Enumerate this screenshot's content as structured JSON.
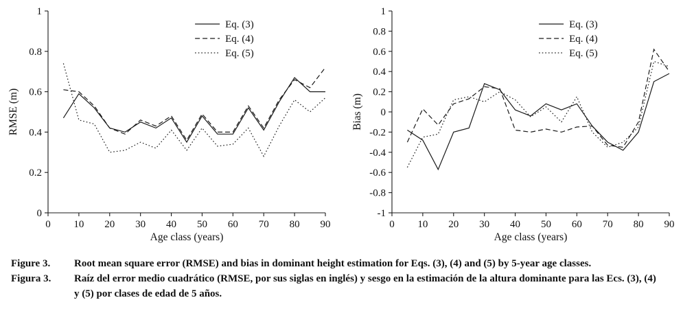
{
  "colors": {
    "line": "#1a1a1a",
    "axis": "#000000",
    "text": "#111111"
  },
  "figure": {
    "caption_en_label": "Figure 3.",
    "caption_en": "Root mean square error (RMSE) and bias in dominant height estimation for Eqs. (3), (4) and (5) by 5-year age classes.",
    "caption_es_label": "Figura 3.",
    "caption_es": "Raíz del error medio cuadrático (RMSE, por sus siglas en inglés) y sesgo en la estimación de la altura dominante para las Ecs. (3), (4) y (5) por clases de edad de 5 años."
  },
  "chart_data": [
    {
      "type": "line",
      "title": "",
      "xlabel": "Age class (years)",
      "ylabel": "RMSE (m)",
      "xlim": [
        0,
        90
      ],
      "ylim": [
        0,
        1
      ],
      "grid": false,
      "legend_position": "top-right-inside",
      "xticks": [
        0,
        10,
        20,
        30,
        40,
        50,
        60,
        70,
        80,
        90
      ],
      "yticks": [
        0,
        0.2,
        0.4,
        0.6,
        0.8,
        1
      ],
      "ytick_labels": [
        "0",
        "0.2",
        "0.4",
        "0.6",
        "0.8",
        "1"
      ],
      "x": [
        5,
        10,
        15,
        20,
        25,
        30,
        35,
        40,
        45,
        50,
        55,
        60,
        65,
        70,
        75,
        80,
        85,
        90
      ],
      "series": [
        {
          "name": "Eq. (3)",
          "style": "solid",
          "values": [
            0.47,
            0.59,
            0.52,
            0.42,
            0.4,
            0.45,
            0.42,
            0.47,
            0.35,
            0.48,
            0.39,
            0.39,
            0.52,
            0.41,
            0.55,
            0.67,
            0.6,
            0.6
          ]
        },
        {
          "name": "Eq. (4)",
          "style": "dashed",
          "values": [
            0.61,
            0.6,
            0.53,
            0.42,
            0.39,
            0.46,
            0.43,
            0.48,
            0.36,
            0.49,
            0.4,
            0.4,
            0.53,
            0.42,
            0.56,
            0.66,
            0.62,
            0.72
          ]
        },
        {
          "name": "Eq. (5)",
          "style": "dotted",
          "values": [
            0.74,
            0.46,
            0.44,
            0.3,
            0.31,
            0.35,
            0.32,
            0.41,
            0.31,
            0.42,
            0.33,
            0.34,
            0.42,
            0.28,
            0.43,
            0.56,
            0.5,
            0.57
          ]
        }
      ]
    },
    {
      "type": "line",
      "title": "",
      "xlabel": "Age class (years)",
      "ylabel": "Bias (m)",
      "xlim": [
        0,
        90
      ],
      "ylim": [
        -1,
        1
      ],
      "grid": false,
      "legend_position": "top-right-inside",
      "xticks": [
        0,
        10,
        20,
        30,
        40,
        50,
        60,
        70,
        80,
        90
      ],
      "yticks": [
        -1,
        -0.8,
        -0.6,
        -0.4,
        -0.2,
        0,
        0.2,
        0.4,
        0.6,
        0.8,
        1
      ],
      "ytick_labels": [
        "-1",
        "-0.8",
        "-0.6",
        "-0.4",
        "-0.2",
        "0",
        "0.2",
        "0.4",
        "0.6",
        "0.8",
        "1"
      ],
      "x": [
        5,
        10,
        15,
        20,
        25,
        30,
        35,
        40,
        45,
        50,
        55,
        60,
        65,
        70,
        75,
        80,
        85,
        90
      ],
      "series": [
        {
          "name": "Eq. (3)",
          "style": "solid",
          "values": [
            -0.18,
            -0.28,
            -0.57,
            -0.2,
            -0.16,
            0.28,
            0.22,
            0.02,
            -0.04,
            0.08,
            0.02,
            0.08,
            -0.14,
            -0.3,
            -0.38,
            -0.2,
            0.3,
            0.38
          ]
        },
        {
          "name": "Eq. (4)",
          "style": "dashed",
          "values": [
            -0.3,
            0.03,
            -0.13,
            0.08,
            0.13,
            0.25,
            0.23,
            -0.18,
            -0.2,
            -0.17,
            -0.2,
            -0.15,
            -0.14,
            -0.33,
            -0.35,
            -0.1,
            0.62,
            0.4
          ]
        },
        {
          "name": "Eq. (5)",
          "style": "dotted",
          "values": [
            -0.55,
            -0.25,
            -0.22,
            0.12,
            0.15,
            0.1,
            0.2,
            0.12,
            -0.05,
            0.05,
            -0.1,
            0.15,
            -0.2,
            -0.35,
            -0.3,
            -0.15,
            0.5,
            0.45
          ]
        }
      ]
    }
  ]
}
